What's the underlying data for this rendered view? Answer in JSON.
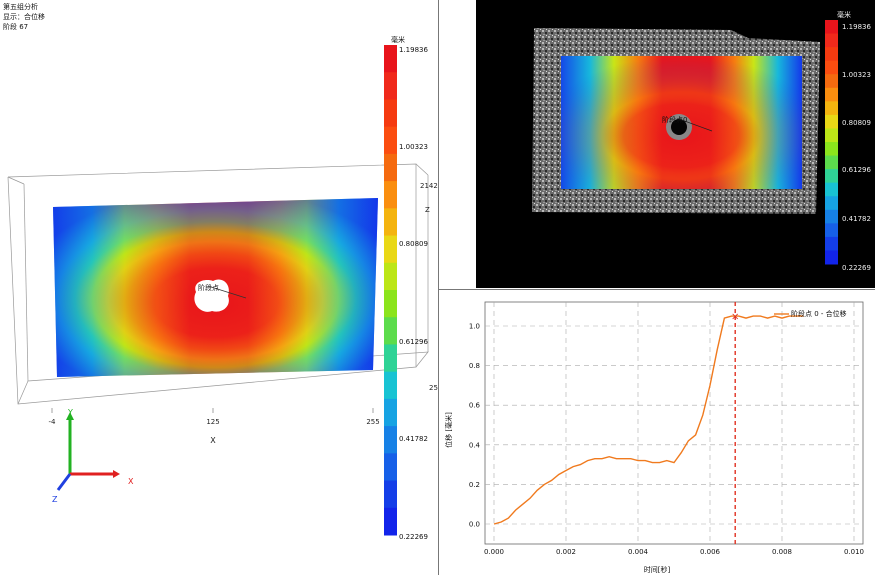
{
  "info": {
    "line1": "第五组分析",
    "line2": "显示：合位移",
    "line3": "阶段 67"
  },
  "colorbar": {
    "unit": "毫米",
    "ticks": [
      "1.19836",
      "1.00323",
      "0.80809",
      "0.61296",
      "0.41782",
      "0.22269"
    ],
    "colors": [
      "#e8141b",
      "#f0291b",
      "#f53a10",
      "#fb4d10",
      "#f56a0f",
      "#fa8e0f",
      "#f4b40f",
      "#e9d816",
      "#bce617",
      "#8be41c",
      "#5cdc4c",
      "#2fd396",
      "#18c3d3",
      "#16a3e3",
      "#1681e6",
      "#1660e8",
      "#143ee8",
      "#1224ea"
    ]
  },
  "view3d": {
    "probe_label": "阶段点",
    "axis_ticks_x": [
      "-4",
      "125",
      "255"
    ],
    "axis_title_x": "X",
    "side_labels": [
      "2142",
      "Z",
      "25"
    ],
    "triad": {
      "y": "Y",
      "x": "X",
      "z": "Z"
    }
  },
  "camera": {
    "probe_label": "阶段点0"
  },
  "chart_data": {
    "type": "line",
    "xlabel": "时间[秒]",
    "ylabel": "位移 [毫米]",
    "xlim": [
      0,
      0.01
    ],
    "ylim": [
      0,
      1.1
    ],
    "xticks": [
      "0.000",
      "0.002",
      "0.004",
      "0.006",
      "0.008",
      "0.010"
    ],
    "yticks": [
      "0.0",
      "0.2",
      "0.4",
      "0.6",
      "0.8",
      "1.0"
    ],
    "series": [
      {
        "name": "阶段点 0 - 合位移",
        "color": "#f07a1e",
        "x": [
          0.0,
          0.0002,
          0.0004,
          0.0006,
          0.0008,
          0.001,
          0.0012,
          0.0014,
          0.0016,
          0.0018,
          0.002,
          0.0022,
          0.0024,
          0.0026,
          0.0028,
          0.003,
          0.0032,
          0.0034,
          0.0036,
          0.0038,
          0.004,
          0.0042,
          0.0044,
          0.0046,
          0.0048,
          0.005,
          0.0052,
          0.0054,
          0.0056,
          0.0058,
          0.006,
          0.0062,
          0.0064,
          0.0066,
          0.0068,
          0.007,
          0.0072,
          0.0074,
          0.0076,
          0.0078,
          0.008,
          0.0082,
          0.0084,
          0.0086
        ],
        "y": [
          0.0,
          0.01,
          0.03,
          0.07,
          0.1,
          0.13,
          0.17,
          0.2,
          0.22,
          0.25,
          0.27,
          0.29,
          0.3,
          0.32,
          0.33,
          0.33,
          0.34,
          0.33,
          0.33,
          0.33,
          0.32,
          0.32,
          0.31,
          0.31,
          0.32,
          0.31,
          0.36,
          0.42,
          0.45,
          0.55,
          0.7,
          0.88,
          1.04,
          1.05,
          1.05,
          1.04,
          1.05,
          1.05,
          1.04,
          1.05,
          1.04,
          1.05,
          1.05,
          1.05
        ]
      }
    ],
    "marker_x": 0.0067
  }
}
